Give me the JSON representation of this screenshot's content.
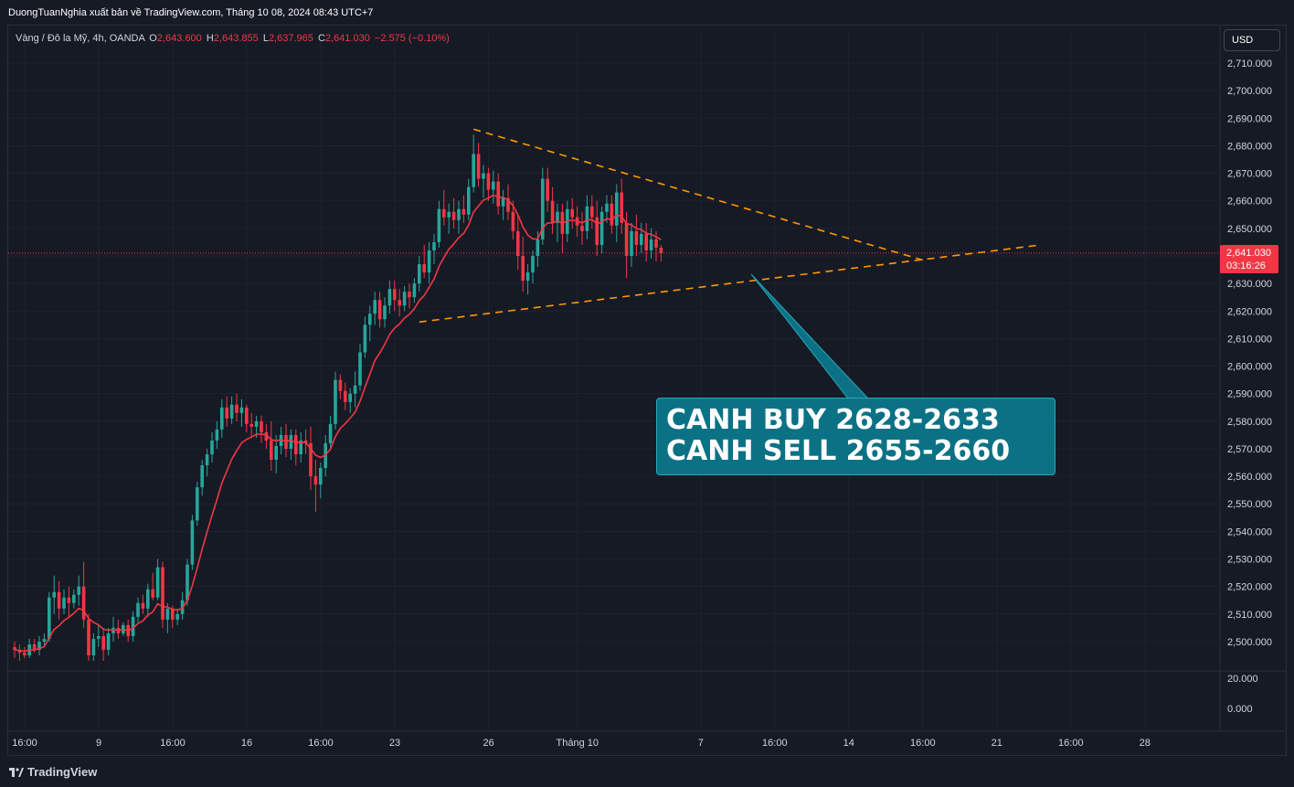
{
  "header": {
    "publisher_line": "DuongTuanNghia xuất bản về TradingView.com, Tháng 10 08, 2024 08:43 UTC+7"
  },
  "legend": {
    "symbol": "Vàng / Đô la Mỹ, 4h, OANDA",
    "open_label": "O",
    "open": "2,643.600",
    "high_label": "H",
    "high": "2,643.855",
    "low_label": "L",
    "low": "2,637.965",
    "close_label": "C",
    "close": "2,641.030",
    "change": "−2.575 (−0.10%)"
  },
  "currency_button": "USD",
  "last_price": {
    "price": "2,641.030",
    "countdown": "03:16:26"
  },
  "callout": {
    "line1": "CANH BUY 2628-2633",
    "line2": "CANH SELL 2655-2660"
  },
  "footer": {
    "brand": "TradingView"
  },
  "colors": {
    "background": "#161a25",
    "up": "#26a69a",
    "down": "#f23645",
    "ma": "#f23645",
    "trendline": "#ff9800",
    "callout": "#0b7285"
  },
  "chart_data": {
    "type": "candlestick",
    "timeframe": "4h",
    "y_axis": {
      "range": [
        2492,
        2712
      ],
      "ticks": [
        "2,710.000",
        "2,700.000",
        "2,690.000",
        "2,680.000",
        "2,670.000",
        "2,660.000",
        "2,650.000",
        "2,640.000",
        "2,630.000",
        "2,620.000",
        "2,610.000",
        "2,600.000",
        "2,590.000",
        "2,580.000",
        "2,570.000",
        "2,560.000",
        "2,550.000",
        "2,540.000",
        "2,530.000",
        "2,520.000",
        "2,510.000",
        "2,500.000"
      ],
      "tick_values": [
        2710,
        2700,
        2690,
        2680,
        2670,
        2660,
        2650,
        2640,
        2630,
        2620,
        2610,
        2600,
        2590,
        2580,
        2570,
        2560,
        2550,
        2540,
        2530,
        2520,
        2510,
        2500
      ]
    },
    "volume_axis": {
      "ticks": [
        "20.000",
        "0.000"
      ]
    },
    "x_axis": {
      "labels": [
        "16:00",
        "9",
        "16:00",
        "16",
        "16:00",
        "23",
        "26",
        "Tháng 10",
        "7",
        "16:00",
        "14",
        "16:00",
        "21",
        "16:00",
        "28"
      ],
      "label_bar_index": [
        0,
        15,
        30,
        45,
        60,
        75,
        94,
        112,
        137,
        152,
        167,
        182,
        197,
        212,
        227
      ]
    },
    "candles": [
      [
        2498,
        2500,
        2494,
        2497
      ],
      [
        2497,
        2499,
        2493,
        2496
      ],
      [
        2496,
        2498,
        2494,
        2495
      ],
      [
        2495,
        2501,
        2494,
        2499
      ],
      [
        2499,
        2501,
        2496,
        2497
      ],
      [
        2497,
        2502,
        2495,
        2500
      ],
      [
        2500,
        2503,
        2498,
        2501
      ],
      [
        2501,
        2518,
        2500,
        2516
      ],
      [
        2516,
        2524,
        2510,
        2518
      ],
      [
        2518,
        2522,
        2508,
        2512
      ],
      [
        2512,
        2519,
        2510,
        2516
      ],
      [
        2516,
        2520,
        2509,
        2514
      ],
      [
        2514,
        2519,
        2512,
        2517
      ],
      [
        2517,
        2524,
        2513,
        2520
      ],
      [
        2520,
        2529,
        2505,
        2508
      ],
      [
        2508,
        2510,
        2493,
        2495
      ],
      [
        2495,
        2503,
        2493,
        2501
      ],
      [
        2501,
        2506,
        2498,
        2502
      ],
      [
        2502,
        2505,
        2493,
        2497
      ],
      [
        2497,
        2505,
        2495,
        2503
      ],
      [
        2503,
        2509,
        2500,
        2505
      ],
      [
        2505,
        2508,
        2501,
        2503
      ],
      [
        2503,
        2507,
        2502,
        2506
      ],
      [
        2506,
        2508,
        2500,
        2502
      ],
      [
        2502,
        2511,
        2500,
        2509
      ],
      [
        2509,
        2516,
        2507,
        2514
      ],
      [
        2514,
        2517,
        2510,
        2512
      ],
      [
        2512,
        2521,
        2509,
        2519
      ],
      [
        2519,
        2525,
        2515,
        2516
      ],
      [
        2516,
        2530,
        2515,
        2527
      ],
      [
        2527,
        2529,
        2505,
        2508
      ],
      [
        2508,
        2514,
        2503,
        2512
      ],
      [
        2512,
        2513,
        2505,
        2508
      ],
      [
        2508,
        2512,
        2506,
        2510
      ],
      [
        2510,
        2518,
        2508,
        2515
      ],
      [
        2515,
        2530,
        2513,
        2528
      ],
      [
        2528,
        2546,
        2526,
        2544
      ],
      [
        2544,
        2558,
        2542,
        2556
      ],
      [
        2556,
        2566,
        2553,
        2564
      ],
      [
        2564,
        2570,
        2560,
        2568
      ],
      [
        2568,
        2576,
        2565,
        2573
      ],
      [
        2573,
        2580,
        2570,
        2577
      ],
      [
        2577,
        2588,
        2574,
        2585
      ],
      [
        2585,
        2589,
        2578,
        2581
      ],
      [
        2581,
        2589,
        2579,
        2586
      ],
      [
        2586,
        2590,
        2580,
        2583
      ],
      [
        2583,
        2588,
        2578,
        2585
      ],
      [
        2585,
        2586,
        2576,
        2579
      ],
      [
        2579,
        2583,
        2574,
        2578
      ],
      [
        2578,
        2582,
        2574,
        2580
      ],
      [
        2580,
        2582,
        2572,
        2576
      ],
      [
        2576,
        2579,
        2570,
        2573
      ],
      [
        2573,
        2580,
        2562,
        2566
      ],
      [
        2566,
        2575,
        2561,
        2571
      ],
      [
        2571,
        2578,
        2568,
        2575
      ],
      [
        2575,
        2579,
        2567,
        2570
      ],
      [
        2570,
        2577,
        2566,
        2575
      ],
      [
        2575,
        2577,
        2564,
        2568
      ],
      [
        2568,
        2576,
        2565,
        2573
      ],
      [
        2573,
        2577,
        2568,
        2572
      ],
      [
        2572,
        2578,
        2555,
        2560
      ],
      [
        2560,
        2566,
        2547,
        2557
      ],
      [
        2557,
        2565,
        2552,
        2563
      ],
      [
        2563,
        2575,
        2560,
        2572
      ],
      [
        2572,
        2582,
        2570,
        2579
      ],
      [
        2579,
        2598,
        2577,
        2595
      ],
      [
        2595,
        2597,
        2588,
        2591
      ],
      [
        2591,
        2594,
        2584,
        2587
      ],
      [
        2587,
        2592,
        2583,
        2590
      ],
      [
        2590,
        2598,
        2585,
        2593
      ],
      [
        2593,
        2608,
        2591,
        2605
      ],
      [
        2605,
        2618,
        2603,
        2615
      ],
      [
        2615,
        2622,
        2609,
        2619
      ],
      [
        2619,
        2627,
        2615,
        2624
      ],
      [
        2624,
        2627,
        2614,
        2617
      ],
      [
        2617,
        2625,
        2614,
        2622
      ],
      [
        2622,
        2631,
        2619,
        2628
      ],
      [
        2628,
        2631,
        2620,
        2624
      ],
      [
        2624,
        2628,
        2618,
        2622
      ],
      [
        2622,
        2629,
        2620,
        2627
      ],
      [
        2627,
        2630,
        2621,
        2625
      ],
      [
        2625,
        2632,
        2623,
        2630
      ],
      [
        2630,
        2640,
        2627,
        2637
      ],
      [
        2637,
        2644,
        2632,
        2634
      ],
      [
        2634,
        2645,
        2630,
        2642
      ],
      [
        2642,
        2648,
        2637,
        2645
      ],
      [
        2645,
        2660,
        2643,
        2657
      ],
      [
        2657,
        2664,
        2651,
        2654
      ],
      [
        2654,
        2659,
        2648,
        2656
      ],
      [
        2656,
        2661,
        2650,
        2653
      ],
      [
        2653,
        2660,
        2648,
        2657
      ],
      [
        2657,
        2662,
        2652,
        2655
      ],
      [
        2655,
        2668,
        2653,
        2665
      ],
      [
        2665,
        2684,
        2663,
        2677
      ],
      [
        2677,
        2681,
        2665,
        2668
      ],
      [
        2668,
        2673,
        2661,
        2670
      ],
      [
        2670,
        2672,
        2660,
        2664
      ],
      [
        2664,
        2671,
        2659,
        2667
      ],
      [
        2667,
        2670,
        2655,
        2658
      ],
      [
        2658,
        2664,
        2653,
        2661
      ],
      [
        2661,
        2666,
        2653,
        2656
      ],
      [
        2656,
        2660,
        2646,
        2649
      ],
      [
        2649,
        2655,
        2635,
        2640
      ],
      [
        2640,
        2647,
        2627,
        2631
      ],
      [
        2631,
        2637,
        2626,
        2634
      ],
      [
        2634,
        2642,
        2630,
        2640
      ],
      [
        2640,
        2649,
        2636,
        2646
      ],
      [
        2646,
        2672,
        2644,
        2668
      ],
      [
        2668,
        2672,
        2656,
        2660
      ],
      [
        2660,
        2665,
        2648,
        2652
      ],
      [
        2652,
        2659,
        2645,
        2656
      ],
      [
        2656,
        2659,
        2641,
        2648
      ],
      [
        2648,
        2660,
        2645,
        2657
      ],
      [
        2657,
        2661,
        2650,
        2654
      ],
      [
        2654,
        2658,
        2647,
        2651
      ],
      [
        2651,
        2656,
        2644,
        2649
      ],
      [
        2649,
        2662,
        2646,
        2658
      ],
      [
        2658,
        2662,
        2650,
        2654
      ],
      [
        2654,
        2660,
        2640,
        2644
      ],
      [
        2644,
        2658,
        2641,
        2656
      ],
      [
        2656,
        2662,
        2652,
        2659
      ],
      [
        2659,
        2662,
        2648,
        2651
      ],
      [
        2651,
        2666,
        2645,
        2663
      ],
      [
        2663,
        2668,
        2648,
        2652
      ],
      [
        2652,
        2656,
        2632,
        2640
      ],
      [
        2640,
        2652,
        2636,
        2649
      ],
      [
        2649,
        2655,
        2640,
        2644
      ],
      [
        2644,
        2652,
        2641,
        2648
      ],
      [
        2648,
        2652,
        2638,
        2642
      ],
      [
        2642,
        2650,
        2639,
        2646
      ],
      [
        2646,
        2649,
        2638,
        2643
      ],
      [
        2643,
        2644,
        2638,
        2641
      ]
    ],
    "moving_average": {
      "label": "",
      "values_note": "red line smoothing the closes"
    },
    "annotations": [
      {
        "type": "trendline",
        "style": "dashed",
        "from": [
          93,
          2686
        ],
        "to": [
          185,
          2638
        ]
      },
      {
        "type": "trendline",
        "style": "dashed",
        "from": [
          82,
          2616
        ],
        "to": [
          208,
          2644
        ]
      }
    ]
  }
}
